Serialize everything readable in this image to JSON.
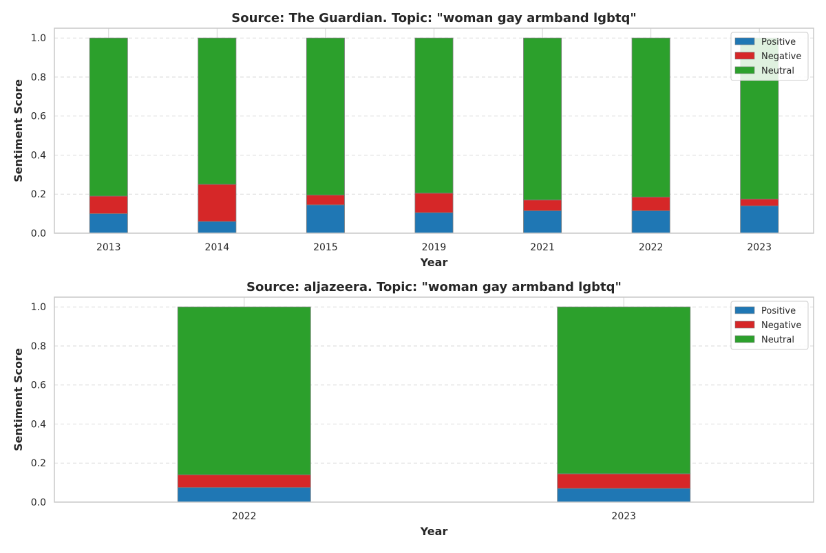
{
  "chart_data": [
    {
      "type": "bar",
      "stacked": true,
      "title": "Source: The Guardian. Topic: \"woman gay armband lgbtq\"",
      "xlabel": "Year",
      "ylabel": "Sentiment Score",
      "ylim": [
        0,
        1.05
      ],
      "yticks": [
        "0.0",
        "0.2",
        "0.4",
        "0.6",
        "0.8",
        "1.0"
      ],
      "grid": true,
      "legend": "top-right",
      "categories": [
        "2013",
        "2014",
        "2015",
        "2019",
        "2021",
        "2022",
        "2023"
      ],
      "series": [
        {
          "name": "Positive",
          "color": "#1f77b4",
          "values": [
            0.1,
            0.06,
            0.145,
            0.105,
            0.115,
            0.115,
            0.14
          ]
        },
        {
          "name": "Negative",
          "color": "#d62728",
          "values": [
            0.09,
            0.19,
            0.05,
            0.1,
            0.055,
            0.07,
            0.035
          ]
        },
        {
          "name": "Neutral",
          "color": "#2ca02c",
          "values": [
            0.81,
            0.75,
            0.805,
            0.795,
            0.83,
            0.815,
            0.825
          ]
        }
      ]
    },
    {
      "type": "bar",
      "stacked": true,
      "title": "Source: aljazeera. Topic: \"woman gay armband lgbtq\"",
      "xlabel": "Year",
      "ylabel": "Sentiment Score",
      "ylim": [
        0,
        1.05
      ],
      "yticks": [
        "0.0",
        "0.2",
        "0.4",
        "0.6",
        "0.8",
        "1.0"
      ],
      "grid": true,
      "legend": "top-right",
      "categories": [
        "2022",
        "2023"
      ],
      "series": [
        {
          "name": "Positive",
          "color": "#1f77b4",
          "values": [
            0.075,
            0.07
          ]
        },
        {
          "name": "Negative",
          "color": "#d62728",
          "values": [
            0.065,
            0.075
          ]
        },
        {
          "name": "Neutral",
          "color": "#2ca02c",
          "values": [
            0.86,
            0.855
          ]
        }
      ]
    }
  ]
}
